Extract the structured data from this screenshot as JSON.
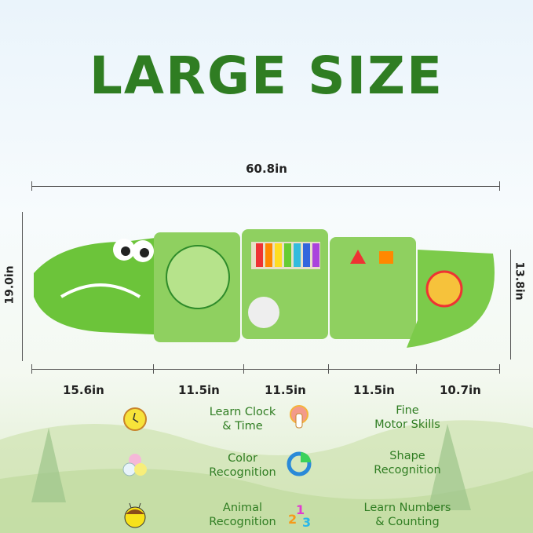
{
  "title": "LARGE SIZE",
  "total_width": "60.8in",
  "left_height": "19.0in",
  "right_height": "13.8in",
  "segments": [
    "15.6in",
    "11.5in",
    "11.5in",
    "11.5in",
    "10.7in"
  ],
  "features": [
    {
      "icon": "clock-icon",
      "line1": "Learn Clock",
      "line2": "& Time"
    },
    {
      "icon": "finger-press-icon",
      "line1": "Fine",
      "line2": "Motor Skills"
    },
    {
      "icon": "color-balls-icon",
      "line1": "Color",
      "line2": "Recognition"
    },
    {
      "icon": "shape-pie-icon",
      "line1": "Shape",
      "line2": "Recognition"
    },
    {
      "icon": "bee-icon",
      "line1": "Animal",
      "line2": "Recognition"
    },
    {
      "icon": "numbers-icon",
      "line1": "Learn Numbers",
      "line2": "& Counting"
    }
  ],
  "colors": {
    "title": "#2f7d22",
    "croc": "#6cc43a",
    "croc_dark": "#2e8b2a"
  }
}
